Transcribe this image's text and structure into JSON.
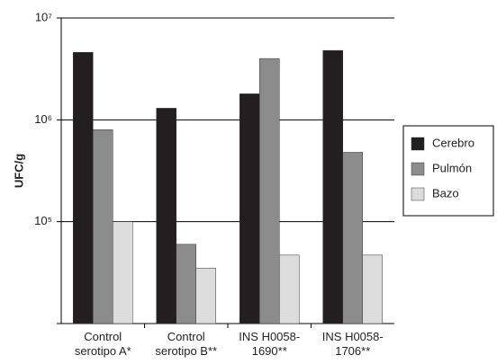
{
  "chart_data": {
    "type": "bar",
    "log_scale": true,
    "grid": true,
    "y_label": "UFC/g",
    "categories": [
      "Control\nserotipo A*",
      "Control\nserotipo B**",
      "INS H0058-\n1690**",
      "INS H0058-\n1706**"
    ],
    "series": [
      {
        "name": "Cerebro",
        "color": "#231f20",
        "values": [
          4600000,
          1300000,
          1800000,
          4800000
        ]
      },
      {
        "name": "Pulmón",
        "color": "#8c8c8c",
        "values": [
          800000,
          60000,
          4000000,
          480000
        ]
      },
      {
        "name": "Bazo",
        "color": "#dcdcdc",
        "values": [
          100000,
          35000,
          47000,
          47000
        ]
      }
    ],
    "ylim": [
      10000,
      10000000
    ],
    "yticks": [
      {
        "value": 100000,
        "label": "10⁵"
      },
      {
        "value": 1000000,
        "label": "10⁶"
      },
      {
        "value": 10000000,
        "label": "10⁷"
      }
    ],
    "legend": "right"
  }
}
